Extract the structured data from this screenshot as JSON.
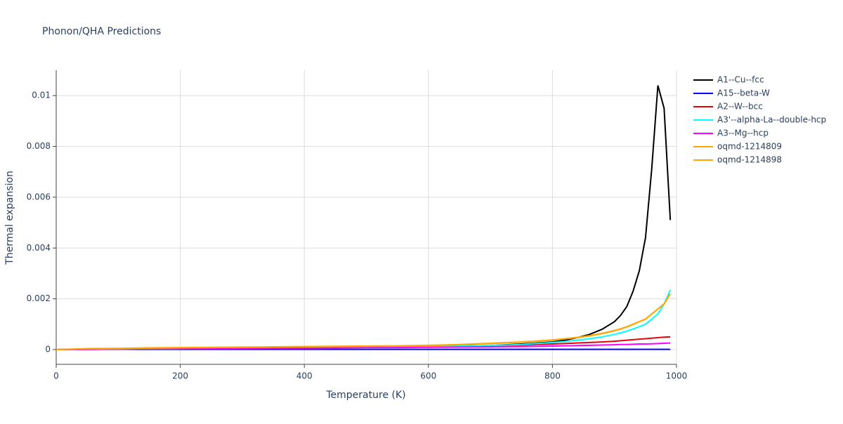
{
  "chart_data": {
    "type": "line",
    "title": "Phonon/QHA Predictions",
    "x_label": "Temperature (K)",
    "y_label": "Thermal expansion",
    "x": [
      0,
      50,
      100,
      150,
      200,
      250,
      300,
      350,
      400,
      450,
      500,
      550,
      600,
      650,
      700,
      750,
      800,
      820,
      840,
      860,
      880,
      900,
      910,
      920,
      930,
      940,
      950,
      960,
      970,
      980,
      990
    ],
    "series": [
      {
        "name": "A1--Cu--fcc",
        "color": "#000000",
        "values": [
          0,
          2e-05,
          3e-05,
          4e-05,
          5e-05,
          6e-05,
          7e-05,
          8e-05,
          9e-05,
          0.0001,
          0.0001,
          0.00011,
          0.00012,
          0.00014,
          0.00016,
          0.00022,
          0.0003,
          0.00037,
          0.00047,
          0.0006,
          0.0008,
          0.0011,
          0.00135,
          0.0017,
          0.0023,
          0.0031,
          0.0044,
          0.0071,
          0.0104,
          0.0095,
          0.0051
        ]
      },
      {
        "name": "A15--beta-W",
        "color": "#0000ff",
        "values": [
          0,
          1e-05,
          1e-05,
          1e-05,
          1e-05,
          1e-05,
          1e-05,
          1e-05,
          1e-05,
          1e-05,
          1e-05,
          1e-05,
          1e-05,
          1e-05,
          1e-05,
          1e-05,
          1e-05,
          1e-05,
          1e-05,
          1e-05,
          1e-05,
          1e-05,
          1e-05,
          1e-05,
          1e-05,
          1e-05,
          1e-05,
          1e-05,
          1e-05,
          1e-05,
          1e-05
        ]
      },
      {
        "name": "A2--W--bcc",
        "color": "#e8000b",
        "values": [
          0,
          1e-05,
          2e-05,
          3e-05,
          4e-05,
          5e-05,
          6e-05,
          7e-05,
          8e-05,
          9e-05,
          0.0001,
          0.00011,
          0.00012,
          0.00013,
          0.00015,
          0.00018,
          0.00022,
          0.00024,
          0.00026,
          0.00028,
          0.0003,
          0.00033,
          0.00035,
          0.00037,
          0.00039,
          0.00041,
          0.00043,
          0.00045,
          0.00047,
          0.00049,
          0.0005
        ]
      },
      {
        "name": "A3'--alpha-La--double-hcp",
        "color": "#00ffff",
        "values": [
          0,
          1e-05,
          2e-05,
          3e-05,
          4e-05,
          5e-05,
          6e-05,
          7e-05,
          8e-05,
          9e-05,
          0.0001,
          0.00011,
          0.00012,
          0.00014,
          0.00016,
          0.0002,
          0.00028,
          0.00032,
          0.00037,
          0.00043,
          0.0005,
          0.0006,
          0.00066,
          0.00073,
          0.00081,
          0.0009,
          0.001,
          0.0012,
          0.0014,
          0.0018,
          0.00235
        ]
      },
      {
        "name": "A3--Mg--hcp",
        "color": "#ff00ff",
        "values": [
          0,
          1e-05,
          2e-05,
          3e-05,
          4e-05,
          4e-05,
          5e-05,
          6e-05,
          6e-05,
          7e-05,
          8e-05,
          8e-05,
          9e-05,
          0.0001,
          0.00011,
          0.00012,
          0.00014,
          0.00015,
          0.00016,
          0.00017,
          0.00018,
          0.00019,
          0.0002,
          0.0002,
          0.00021,
          0.00022,
          0.00022,
          0.00023,
          0.00024,
          0.00025,
          0.00026
        ]
      },
      {
        "name": "oqmd-1214809",
        "color": "#ffa500",
        "values": [
          0,
          4e-05,
          5e-05,
          7e-05,
          8e-05,
          9e-05,
          0.0001,
          0.00011,
          0.00012,
          0.00013,
          0.00014,
          0.00015,
          0.00017,
          0.0002,
          0.00025,
          0.0003,
          0.00038,
          0.00043,
          0.00048,
          0.00055,
          0.00064,
          0.00075,
          0.00082,
          0.0009,
          0.001,
          0.0011,
          0.0012,
          0.0014,
          0.0016,
          0.0018,
          0.0022
        ]
      },
      {
        "name": "oqmd-1214898",
        "color": "#ffa500",
        "values": [
          0,
          3e-05,
          4e-05,
          6e-05,
          7e-05,
          8e-05,
          9e-05,
          0.0001,
          0.00011,
          0.00012,
          0.00013,
          0.00014,
          0.00016,
          0.00019,
          0.00024,
          0.00029,
          0.00037,
          0.00042,
          0.00047,
          0.00054,
          0.00063,
          0.00074,
          0.00081,
          0.00089,
          0.00099,
          0.0011,
          0.0012,
          0.0014,
          0.0016,
          0.0018,
          0.0022
        ]
      }
    ],
    "xlim": [
      0,
      1000
    ],
    "xticks": [
      0,
      200,
      400,
      600,
      800,
      1000
    ],
    "ylim": [
      -0.00058,
      0.011
    ],
    "yticks": [
      0,
      0.002,
      0.004,
      0.006,
      0.008,
      0.01
    ],
    "grid": true,
    "legend": "right"
  }
}
